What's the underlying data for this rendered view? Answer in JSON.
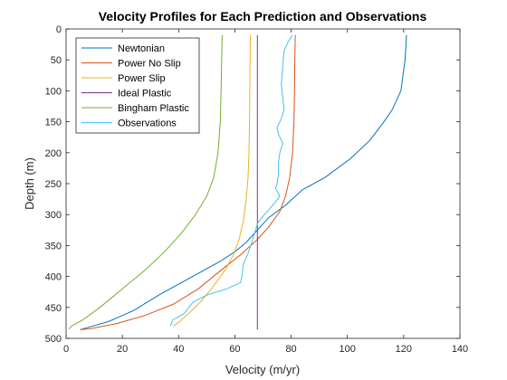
{
  "chart_data": {
    "type": "line",
    "title": "Velocity Profiles for Each Prediction and Observations",
    "xlabel": "Velocity (m/yr)",
    "ylabel": "Depth (m)",
    "xlim": [
      0,
      140
    ],
    "ylim": [
      0,
      500
    ],
    "y_reversed": true,
    "x_ticks": [
      0,
      20,
      40,
      60,
      80,
      100,
      120,
      140
    ],
    "y_ticks": [
      0,
      50,
      100,
      150,
      200,
      250,
      300,
      350,
      400,
      450,
      500
    ],
    "legend_position": "top-left",
    "grid": false,
    "series": [
      {
        "name": "Newtonian",
        "color": "#0072BD",
        "points": [
          [
            121,
            10
          ],
          [
            120.5,
            50
          ],
          [
            119,
            100
          ],
          [
            116,
            130
          ],
          [
            113,
            150
          ],
          [
            108,
            180
          ],
          [
            101,
            210
          ],
          [
            92,
            240
          ],
          [
            84,
            260
          ],
          [
            78,
            285
          ],
          [
            72,
            305
          ],
          [
            68,
            325
          ],
          [
            64,
            345
          ],
          [
            60,
            360
          ],
          [
            55,
            375
          ],
          [
            45,
            400
          ],
          [
            33,
            430
          ],
          [
            24,
            455
          ],
          [
            15,
            473
          ],
          [
            8,
            482
          ],
          [
            5,
            486
          ]
        ]
      },
      {
        "name": "Power No Slip",
        "color": "#D95319",
        "points": [
          [
            81.5,
            10
          ],
          [
            81.3,
            50
          ],
          [
            81.2,
            100
          ],
          [
            81,
            150
          ],
          [
            80.5,
            200
          ],
          [
            79.5,
            240
          ],
          [
            78,
            270
          ],
          [
            76,
            295
          ],
          [
            72,
            320
          ],
          [
            68,
            340
          ],
          [
            62,
            365
          ],
          [
            55,
            390
          ],
          [
            47,
            420
          ],
          [
            38,
            445
          ],
          [
            28,
            463
          ],
          [
            18,
            476
          ],
          [
            9,
            484
          ],
          [
            5,
            486
          ]
        ]
      },
      {
        "name": "Power Slip",
        "color": "#EDB120",
        "points": [
          [
            65.5,
            10
          ],
          [
            65.4,
            50
          ],
          [
            65.3,
            100
          ],
          [
            65.2,
            150
          ],
          [
            65,
            200
          ],
          [
            64.7,
            240
          ],
          [
            64,
            275
          ],
          [
            63,
            310
          ],
          [
            61.5,
            340
          ],
          [
            59.5,
            365
          ],
          [
            56.5,
            390
          ],
          [
            52.5,
            415
          ],
          [
            48,
            440
          ],
          [
            43.5,
            460
          ],
          [
            40,
            474
          ],
          [
            38,
            480
          ]
        ]
      },
      {
        "name": "Ideal Plastic",
        "color": "#7E2F8E",
        "points": [
          [
            68,
            10
          ],
          [
            68,
            486
          ]
        ]
      },
      {
        "name": "Bingham Plastic",
        "color": "#77AC30",
        "points": [
          [
            55.5,
            10
          ],
          [
            55.3,
            50
          ],
          [
            55.1,
            100
          ],
          [
            54.8,
            150
          ],
          [
            54,
            200
          ],
          [
            52.5,
            240
          ],
          [
            50,
            270
          ],
          [
            46,
            300
          ],
          [
            41,
            330
          ],
          [
            35,
            360
          ],
          [
            28,
            390
          ],
          [
            20,
            420
          ],
          [
            12,
            450
          ],
          [
            6,
            470
          ],
          [
            2,
            480
          ],
          [
            1,
            485
          ]
        ]
      },
      {
        "name": "Observations",
        "color": "#4DBEEE",
        "points": [
          [
            80.5,
            10
          ],
          [
            79,
            20
          ],
          [
            77.5,
            35
          ],
          [
            77,
            60
          ],
          [
            76.5,
            90
          ],
          [
            77,
            110
          ],
          [
            77.5,
            130
          ],
          [
            76.5,
            145
          ],
          [
            75,
            160
          ],
          [
            75.5,
            170
          ],
          [
            77,
            185
          ],
          [
            76,
            200
          ],
          [
            75.5,
            215
          ],
          [
            75.5,
            235
          ],
          [
            75,
            250
          ],
          [
            74.5,
            258
          ],
          [
            76,
            270
          ],
          [
            74,
            282
          ],
          [
            71.5,
            295
          ],
          [
            69.5,
            305
          ],
          [
            68,
            315
          ],
          [
            66,
            345
          ],
          [
            64.5,
            365
          ],
          [
            63,
            380
          ],
          [
            62.5,
            400
          ],
          [
            62,
            410
          ],
          [
            57,
            420
          ],
          [
            50,
            430
          ],
          [
            45,
            442
          ],
          [
            42,
            460
          ],
          [
            38,
            470
          ],
          [
            37,
            480
          ]
        ]
      }
    ]
  }
}
